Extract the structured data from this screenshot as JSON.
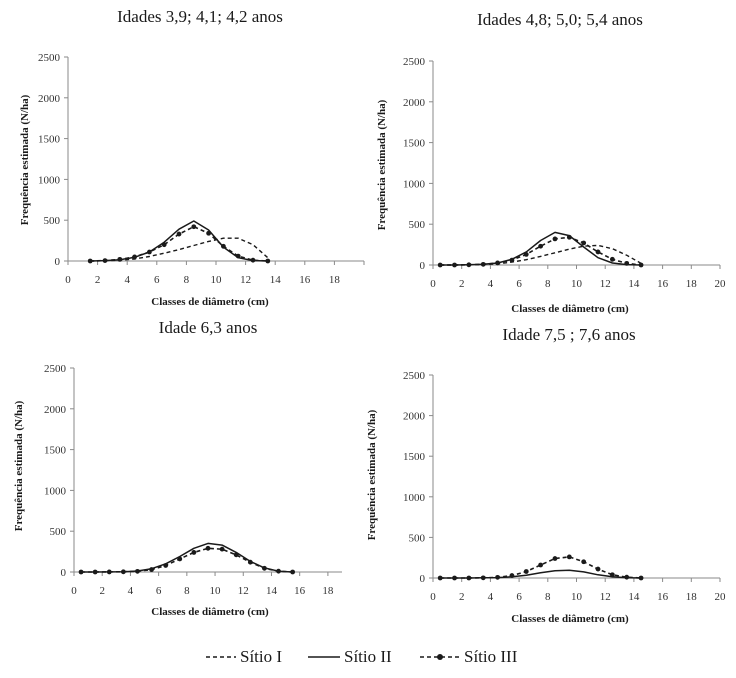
{
  "chart_data": [
    {
      "type": "line",
      "title": "Idades 3,9; 4,1; 4,2 anos",
      "xlabel": "Classes de diâmetro (cm)",
      "ylabel": "Frequência estimada (N/ha)",
      "xlim": [
        0,
        20
      ],
      "ylim": [
        0,
        2500
      ],
      "xticks": [
        "0",
        "2",
        "4",
        "6",
        "8",
        "10",
        "12",
        "14",
        "16",
        "18",
        ""
      ],
      "yticks": [
        "0",
        "500",
        "1000",
        "1500",
        "2000",
        "2500"
      ],
      "series": [
        {
          "name": "Sítio I",
          "style": "dashed",
          "x": [
            1.5,
            2.5,
            3.5,
            4.5,
            5.5,
            6.5,
            7.5,
            8.5,
            9.5,
            10.5,
            11.5,
            12.5,
            13.5
          ],
          "y": [
            0,
            2,
            8,
            25,
            55,
            95,
            140,
            190,
            240,
            280,
            280,
            200,
            40
          ]
        },
        {
          "name": "Sítio II",
          "style": "solid",
          "x": [
            1.5,
            2.5,
            3.5,
            4.5,
            5.5,
            6.5,
            7.5,
            8.5,
            9.5,
            10.5,
            11.5,
            12.5,
            13.5
          ],
          "y": [
            0,
            5,
            15,
            45,
            110,
            230,
            390,
            490,
            380,
            170,
            40,
            5,
            0
          ]
        },
        {
          "name": "Sítio III",
          "style": "dashed-dot",
          "x": [
            1.5,
            2.5,
            3.5,
            4.5,
            5.5,
            6.5,
            7.5,
            8.5,
            9.5,
            10.5,
            11.5,
            12.5,
            13.5
          ],
          "y": [
            0,
            5,
            20,
            50,
            110,
            200,
            330,
            420,
            340,
            180,
            60,
            10,
            0
          ]
        }
      ]
    },
    {
      "type": "line",
      "title": "Idades 4,8; 5,0; 5,4 anos",
      "xlabel": "Classes de diâmetro (cm)",
      "ylabel": "Frequência estimada (N/ha)",
      "xlim": [
        0,
        20
      ],
      "ylim": [
        0,
        2500
      ],
      "xticks": [
        "0",
        "2",
        "4",
        "6",
        "8",
        "10",
        "12",
        "14",
        "16",
        "18",
        "20"
      ],
      "yticks": [
        "0",
        "500",
        "1000",
        "1500",
        "2000",
        "2500"
      ],
      "series": [
        {
          "name": "Sítio I",
          "style": "dashed",
          "x": [
            0.5,
            1.5,
            2.5,
            3.5,
            4.5,
            5.5,
            6.5,
            7.5,
            8.5,
            9.5,
            10.5,
            11.5,
            12.5,
            13.5,
            14.5
          ],
          "y": [
            0,
            0,
            2,
            5,
            15,
            35,
            65,
            105,
            150,
            195,
            230,
            240,
            200,
            120,
            20
          ]
        },
        {
          "name": "Sítio II",
          "style": "solid",
          "x": [
            0.5,
            1.5,
            2.5,
            3.5,
            4.5,
            5.5,
            6.5,
            7.5,
            8.5,
            9.5,
            10.5,
            11.5,
            12.5,
            13.5,
            14.5
          ],
          "y": [
            0,
            0,
            2,
            8,
            25,
            70,
            160,
            300,
            400,
            360,
            220,
            90,
            25,
            5,
            0
          ]
        },
        {
          "name": "Sítio III",
          "style": "dashed-dot",
          "x": [
            0.5,
            1.5,
            2.5,
            3.5,
            4.5,
            5.5,
            6.5,
            7.5,
            8.5,
            9.5,
            10.5,
            11.5,
            12.5,
            13.5,
            14.5
          ],
          "y": [
            0,
            0,
            2,
            8,
            25,
            60,
            130,
            230,
            320,
            340,
            270,
            160,
            70,
            20,
            0
          ]
        }
      ]
    },
    {
      "type": "line",
      "title": "Idade 6,3 anos",
      "xlabel": "Classes de diâmetro (cm)",
      "ylabel": "Frequência estimada (N/ha)",
      "xlim": [
        0,
        19
      ],
      "ylim": [
        0,
        2500
      ],
      "xticks": [
        "0",
        "2",
        "4",
        "6",
        "8",
        "10",
        "12",
        "14",
        "16",
        "18"
      ],
      "yticks": [
        "0",
        "500",
        "1000",
        "1500",
        "2000",
        "2500"
      ],
      "series": [
        {
          "name": "Sítio II",
          "style": "solid",
          "x": [
            0.5,
            1.5,
            2.5,
            3.5,
            4.5,
            5.5,
            6.5,
            7.5,
            8.5,
            9.5,
            10.5,
            11.5,
            12.5,
            13.5,
            14.5,
            15.5
          ],
          "y": [
            0,
            0,
            1,
            3,
            12,
            40,
            100,
            190,
            290,
            350,
            330,
            240,
            130,
            50,
            10,
            0
          ]
        },
        {
          "name": "Sítio III",
          "style": "dashed-dot",
          "x": [
            0.5,
            1.5,
            2.5,
            3.5,
            4.5,
            5.5,
            6.5,
            7.5,
            8.5,
            9.5,
            10.5,
            11.5,
            12.5,
            13.5,
            14.5,
            15.5
          ],
          "y": [
            0,
            0,
            1,
            2,
            8,
            30,
            80,
            160,
            240,
            290,
            280,
            210,
            120,
            45,
            10,
            0
          ]
        }
      ]
    },
    {
      "type": "line",
      "title": "Idade 7,5 ; 7,6 anos",
      "xlabel": "Classes de diâmetro (cm)",
      "ylabel": "Frequência estimada (N/ha)",
      "xlim": [
        0,
        20
      ],
      "ylim": [
        0,
        2500
      ],
      "xticks": [
        "0",
        "2",
        "4",
        "6",
        "8",
        "10",
        "12",
        "14",
        "16",
        "18",
        "20"
      ],
      "yticks": [
        "0",
        "500",
        "1000",
        "1500",
        "2000",
        "2500"
      ],
      "series": [
        {
          "name": "Sítio II",
          "style": "solid",
          "x": [
            0.5,
            1.5,
            2.5,
            3.5,
            4.5,
            5.5,
            6.5,
            7.5,
            8.5,
            9.5,
            10.5,
            11.5,
            12.5,
            13.5,
            14.5
          ],
          "y": [
            0,
            0,
            0,
            2,
            5,
            15,
            35,
            65,
            90,
            95,
            75,
            40,
            15,
            3,
            0
          ]
        },
        {
          "name": "Sítio III",
          "style": "dashed-dot",
          "x": [
            0.5,
            1.5,
            2.5,
            3.5,
            4.5,
            5.5,
            6.5,
            7.5,
            8.5,
            9.5,
            10.5,
            11.5,
            12.5,
            13.5,
            14.5
          ],
          "y": [
            0,
            0,
            0,
            2,
            8,
            30,
            80,
            160,
            240,
            260,
            200,
            110,
            40,
            10,
            0
          ]
        }
      ]
    }
  ],
  "legend": {
    "placement": "bottom",
    "items": [
      {
        "label": "Sítio I",
        "style": "dashed"
      },
      {
        "label": "Sítio II",
        "style": "solid"
      },
      {
        "label": "Sítio III",
        "style": "dashed-dot"
      }
    ]
  }
}
